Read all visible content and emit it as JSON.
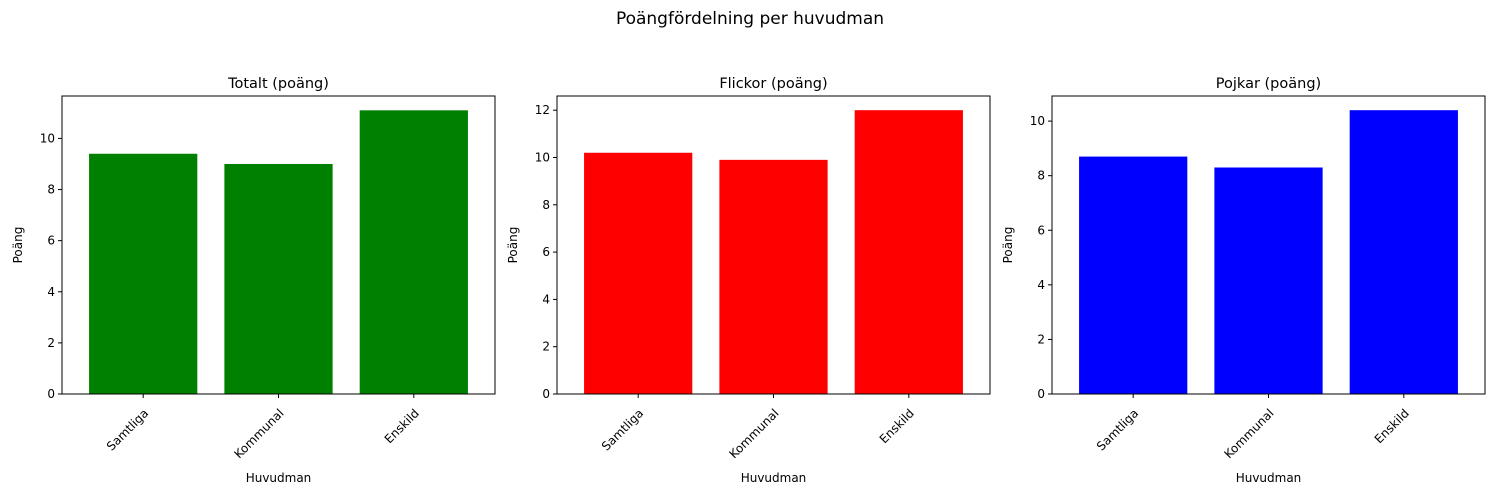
{
  "figure": {
    "suptitle": "Poängfördelning per huvudman"
  },
  "chart_data": [
    {
      "type": "bar",
      "title": "Totalt (poäng)",
      "xlabel": "Huvudman",
      "ylabel": "Poäng",
      "categories": [
        "Samtliga",
        "Kommunal",
        "Enskild"
      ],
      "values": [
        9.4,
        9.0,
        11.1
      ],
      "ylim": [
        0,
        11.66
      ],
      "yticks": [
        0,
        2,
        4,
        6,
        8,
        10
      ],
      "color": "#008000",
      "grid": false
    },
    {
      "type": "bar",
      "title": "Flickor (poäng)",
      "xlabel": "Huvudman",
      "ylabel": "Poäng",
      "categories": [
        "Samtliga",
        "Kommunal",
        "Enskild"
      ],
      "values": [
        10.2,
        9.9,
        12.0
      ],
      "ylim": [
        0,
        12.6
      ],
      "yticks": [
        0,
        2,
        4,
        6,
        8,
        10,
        12
      ],
      "color": "#ff0000",
      "grid": false
    },
    {
      "type": "bar",
      "title": "Pojkar (poäng)",
      "xlabel": "Huvudman",
      "ylabel": "Poäng",
      "categories": [
        "Samtliga",
        "Kommunal",
        "Enskild"
      ],
      "values": [
        8.7,
        8.3,
        10.4
      ],
      "ylim": [
        0,
        10.92
      ],
      "yticks": [
        0,
        2,
        4,
        6,
        8,
        10
      ],
      "color": "#0000ff",
      "grid": false
    }
  ]
}
